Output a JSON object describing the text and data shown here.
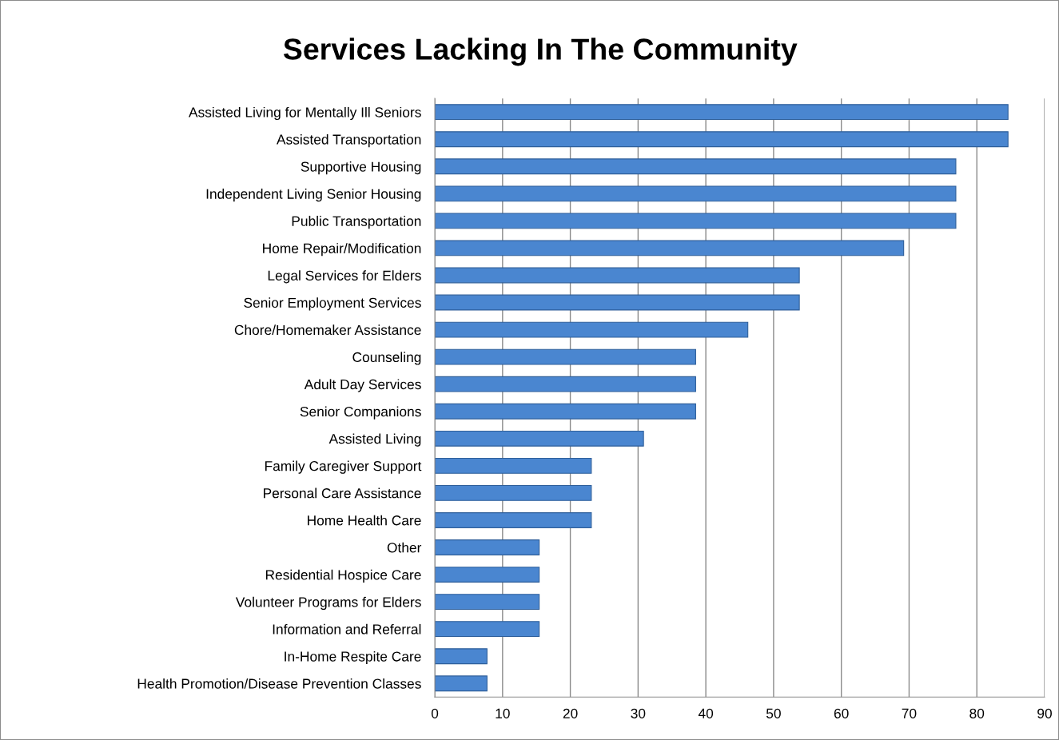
{
  "chart_data": {
    "type": "bar",
    "title": "Services Lacking In The Community",
    "orientation": "horizontal",
    "categories": [
      "Assisted Living for Mentally Ill Seniors",
      "Assisted Transportation",
      "Supportive Housing",
      "Independent Living Senior Housing",
      "Public Transportation",
      "Home Repair/Modification",
      "Legal Services for Elders",
      "Senior Employment Services",
      "Chore/Homemaker Assistance",
      "Counseling",
      "Adult Day Services",
      "Senior Companions",
      "Assisted Living",
      "Family Caregiver Support",
      "Personal Care Assistance",
      "Home Health Care",
      "Other",
      "Residential Hospice Care",
      "Volunteer Programs for Elders",
      "Information and Referral",
      "In-Home Respite Care",
      "Health Promotion/Disease Prevention Classes"
    ],
    "values": [
      84.6,
      84.6,
      76.9,
      76.9,
      76.9,
      69.2,
      53.8,
      53.8,
      46.2,
      38.5,
      38.5,
      38.5,
      30.8,
      23.1,
      23.1,
      23.1,
      15.4,
      15.4,
      15.4,
      15.4,
      7.7,
      7.7
    ],
    "color": "#4a86d0",
    "xlim": [
      0,
      90
    ],
    "xticks": [
      0,
      10,
      20,
      30,
      40,
      50,
      60,
      70,
      80,
      90
    ],
    "grid": "x",
    "legend": false
  }
}
